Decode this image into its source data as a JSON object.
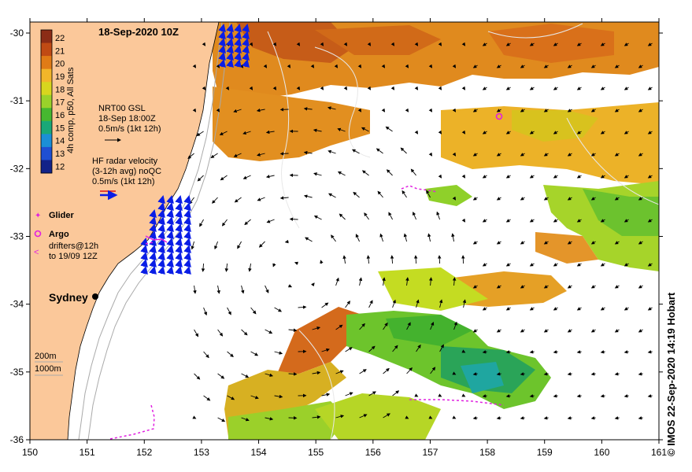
{
  "map": {
    "title": "18-Sep-2020 10Z",
    "colorbar": {
      "label": "4h comp, p50, All Sats",
      "ticks": [
        "22",
        "21",
        "20",
        "19",
        "18",
        "17",
        "16",
        "15",
        "14",
        "13",
        "12"
      ],
      "colors": [
        "#8b2c16",
        "#c04a14",
        "#e07b16",
        "#f2b62a",
        "#d8d61e",
        "#9ad22a",
        "#46b830",
        "#1aa878",
        "#1b8fd6",
        "#1f4fd2",
        "#122288"
      ]
    },
    "legend": {
      "gsl_title": "NRT00 GSL",
      "gsl_time": "18-Sep 18:00Z",
      "gsl_scale": "0.5m/s (1kt 12h)",
      "hf_title": "HF radar velocity",
      "hf_sub": "(3-12h avg) noQC",
      "hf_scale": "0.5m/s (1kt 12h)",
      "glider": "Glider",
      "argo": "Argo",
      "drifters_1": "drifters@12h",
      "drifters_2": "to 19/09 12Z",
      "depth_1": "200m",
      "depth_2": "1000m"
    },
    "city": "Sydney",
    "credit": "© IMOS 22-Sep-2020 14:19 Hobart",
    "x_ticks": [
      "150",
      "151",
      "152",
      "153",
      "154",
      "155",
      "156",
      "157",
      "158",
      "159",
      "160",
      "161"
    ],
    "y_ticks": [
      "-30",
      "-31",
      "-32",
      "-33",
      "-34",
      "-35",
      "-36"
    ],
    "colors": {
      "land": "#fbc89a",
      "glider": "#e020e0",
      "argo": "#e020e0",
      "drifter": "#e020e0",
      "hf_vectors": "#0a1ee6",
      "gsl_vectors": "#000000",
      "contours": "#bbbbbb"
    }
  }
}
